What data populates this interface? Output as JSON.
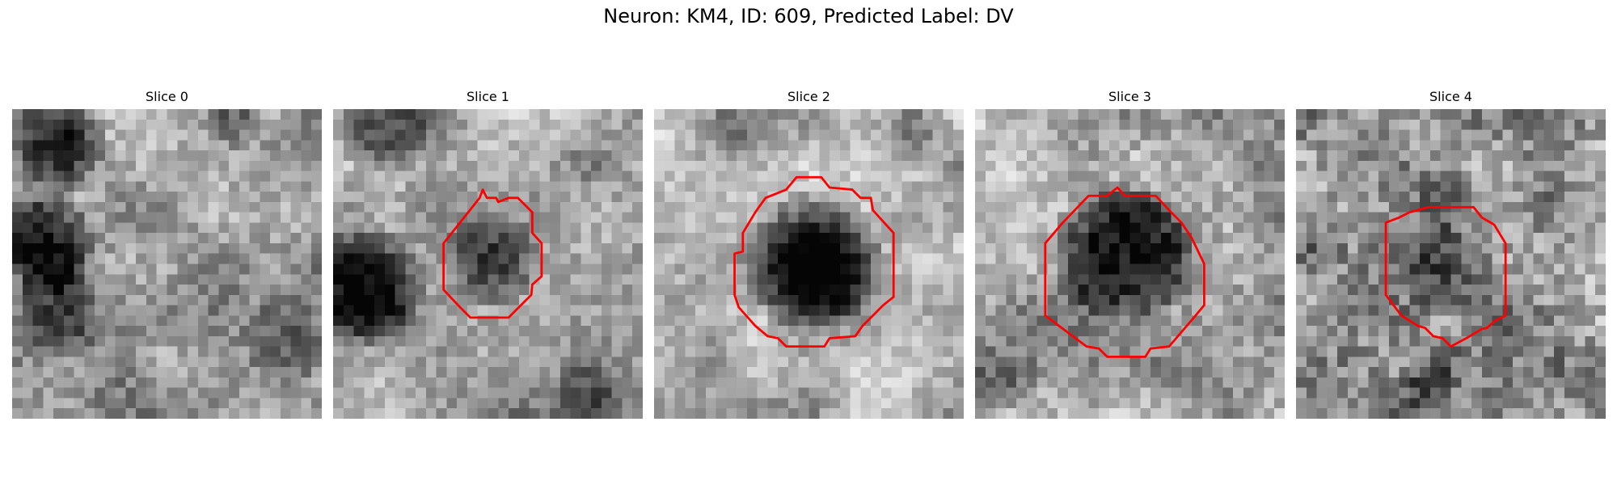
{
  "figure": {
    "title": "Neuron: KM4, ID: 609, Predicted Label: DV"
  },
  "colors": {
    "contour": "#ff0000",
    "background": "#ffffff"
  },
  "slices": [
    {
      "title": "Slice 0",
      "has_contour": false
    },
    {
      "title": "Slice 1",
      "has_contour": true
    },
    {
      "title": "Slice 2",
      "has_contour": true
    },
    {
      "title": "Slice 3",
      "has_contour": true
    },
    {
      "title": "Slice 4",
      "has_contour": true
    }
  ]
}
